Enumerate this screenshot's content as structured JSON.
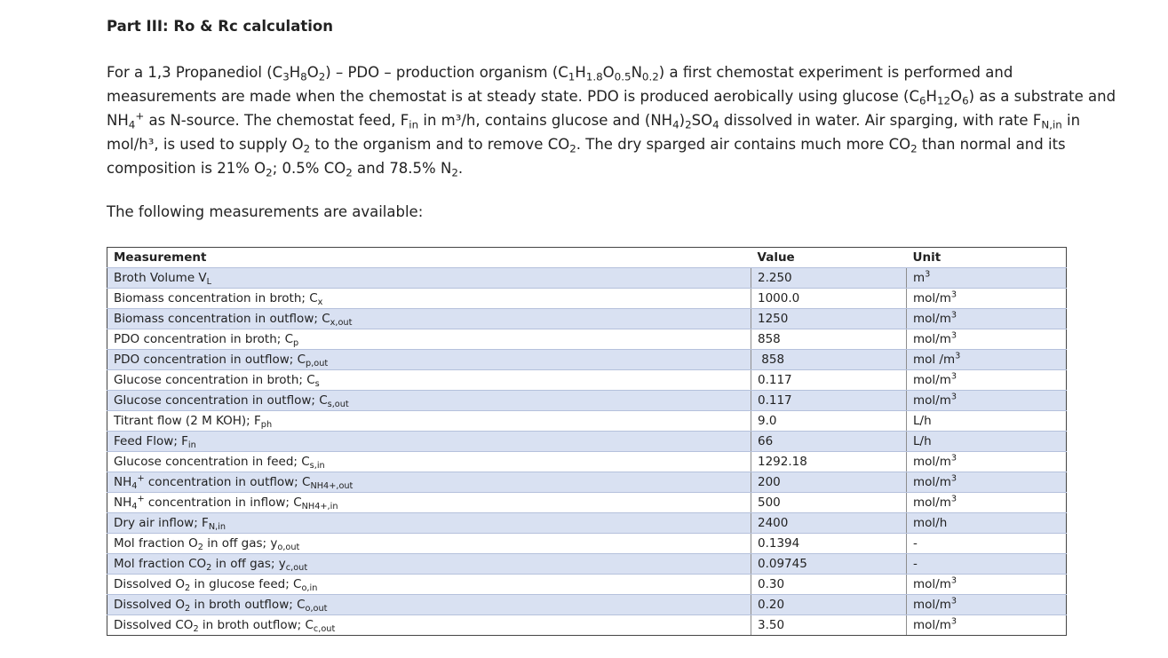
{
  "heading": "Part III: Ro & Rc calculation",
  "para": {
    "l1_a": "For a 1,3 Propanediol (C",
    "l1_b": "3",
    "l1_c": "H",
    "l1_d": "8",
    "l1_e": "O",
    "l1_f": "2",
    "l1_g": ") – PDO – production organism (C",
    "l1_h": "1",
    "l1_i": "H",
    "l1_j": "1.8",
    "l1_k": "O",
    "l1_l": "0.5",
    "l1_m": "N",
    "l1_n": "0.2",
    "l1_o": ") a first chemostat experiment is performed and",
    "l2_a": "measurements are made when the chemostat is at steady state. PDO is produced aerobically using glucose (C",
    "l2_b": "6",
    "l2_c": "H",
    "l2_d": "12",
    "l2_e": "O",
    "l2_f": "6",
    "l2_g": ") as a substrate and",
    "l3_a": "NH",
    "l3_b": "4",
    "l3_c": "+",
    "l3_d": " as N-source. The chemostat feed, F",
    "l3_e": "in",
    "l3_f": " in m³/h, contains glucose and (NH",
    "l3_g": "4",
    "l3_h": ")",
    "l3_i": "2",
    "l3_j": "SO",
    "l3_k": "4",
    "l3_l": " dissolved in water. Air sparging, with rate F",
    "l3_m": "N,in",
    "l3_n": " in",
    "l4_a": "mol/h³, is used to supply O",
    "l4_b": "2",
    "l4_c": " to the organism and to remove CO",
    "l4_d": "2",
    "l4_e": ". The dry sparged air contains much more CO",
    "l4_f": "2",
    "l4_g": " than normal and its",
    "l5_a": "composition is 21% O",
    "l5_b": "2",
    "l5_c": "; 0.5% CO",
    "l5_d": "2",
    "l5_e": " and 78.5% N",
    "l5_f": "2",
    "l5_g": "."
  },
  "intro": "The following measurements are available:",
  "table": {
    "headers": [
      "Measurement",
      "Value",
      "Unit"
    ],
    "rows": [
      {
        "label": "Broth Volume V",
        "sub": "L",
        "value": "2.250",
        "unit": "m",
        "unit_sup": "3"
      },
      {
        "label": "Biomass concentration in broth; C",
        "sub": "x",
        "value": "1000.0",
        "unit": "mol/m",
        "unit_sup": "3"
      },
      {
        "label": "Biomass concentration in outflow; C",
        "sub": "x,out",
        "value": "1250",
        "unit": "mol/m",
        "unit_sup": "3"
      },
      {
        "label": "PDO concentration in broth; C",
        "sub": "p",
        "value": "858",
        "unit": "mol/m",
        "unit_sup": "3"
      },
      {
        "label": "PDO concentration in outflow; C",
        "sub": "p,out",
        "value": " 858",
        "unit": "mol /m",
        "unit_sup": "3"
      },
      {
        "label": "Glucose concentration in broth; C",
        "sub": "s",
        "value": "0.117",
        "unit": "mol/m",
        "unit_sup": "3"
      },
      {
        "label": "Glucose concentration in outflow; C",
        "sub": "s,out",
        "value": "0.117",
        "unit": "mol/m",
        "unit_sup": "3"
      },
      {
        "label": "Titrant flow (2 M KOH); F",
        "sub": "ph",
        "value": "9.0",
        "unit": "L/h",
        "unit_sup": ""
      },
      {
        "label": "Feed Flow; F",
        "sub": "in",
        "value": "66",
        "unit": "L/h",
        "unit_sup": ""
      },
      {
        "label": "Glucose concentration in feed; C",
        "sub": "s,in",
        "value": "1292.18",
        "unit": "mol/m",
        "unit_sup": "3"
      },
      {
        "label": "NH",
        "sub": "4",
        "label_sup": "+",
        "label2": " concentration in outflow; C",
        "sub2": "NH4+,out",
        "value": "200",
        "unit": "mol/m",
        "unit_sup": "3"
      },
      {
        "label": "NH",
        "sub": "4",
        "label_sup": "+",
        "label2": " concentration in inflow; C",
        "sub2": "NH4+,in",
        "value": "500",
        "unit": "mol/m",
        "unit_sup": "3"
      },
      {
        "label": "Dry air inflow; F",
        "sub": "N,in",
        "value": "2400",
        "unit": "mol/h",
        "unit_sup": ""
      },
      {
        "label": "Mol fraction O",
        "sub": "2",
        "label2": " in off gas; y",
        "sub2": "o,out",
        "value": "0.1394",
        "unit": "-",
        "unit_sup": ""
      },
      {
        "label": "Mol fraction CO",
        "sub": "2",
        "label2": " in off gas; y",
        "sub2": "c,out",
        "value": "0.09745",
        "unit": "-",
        "unit_sup": ""
      },
      {
        "label": "Dissolved O",
        "sub": "2",
        "label2": " in glucose feed; C",
        "sub2": "o,in",
        "value": "0.30",
        "unit": "mol/m",
        "unit_sup": "3"
      },
      {
        "label": "Dissolved O",
        "sub": "2",
        "label2": " in broth outflow; C",
        "sub2": "o,out",
        "value": "0.20",
        "unit": "mol/m",
        "unit_sup": "3"
      },
      {
        "label": "Dissolved CO",
        "sub": "2",
        "label2": " in broth outflow; C",
        "sub2": "c,out",
        "value": "3.50",
        "unit": "mol/m",
        "unit_sup": "3"
      }
    ]
  }
}
